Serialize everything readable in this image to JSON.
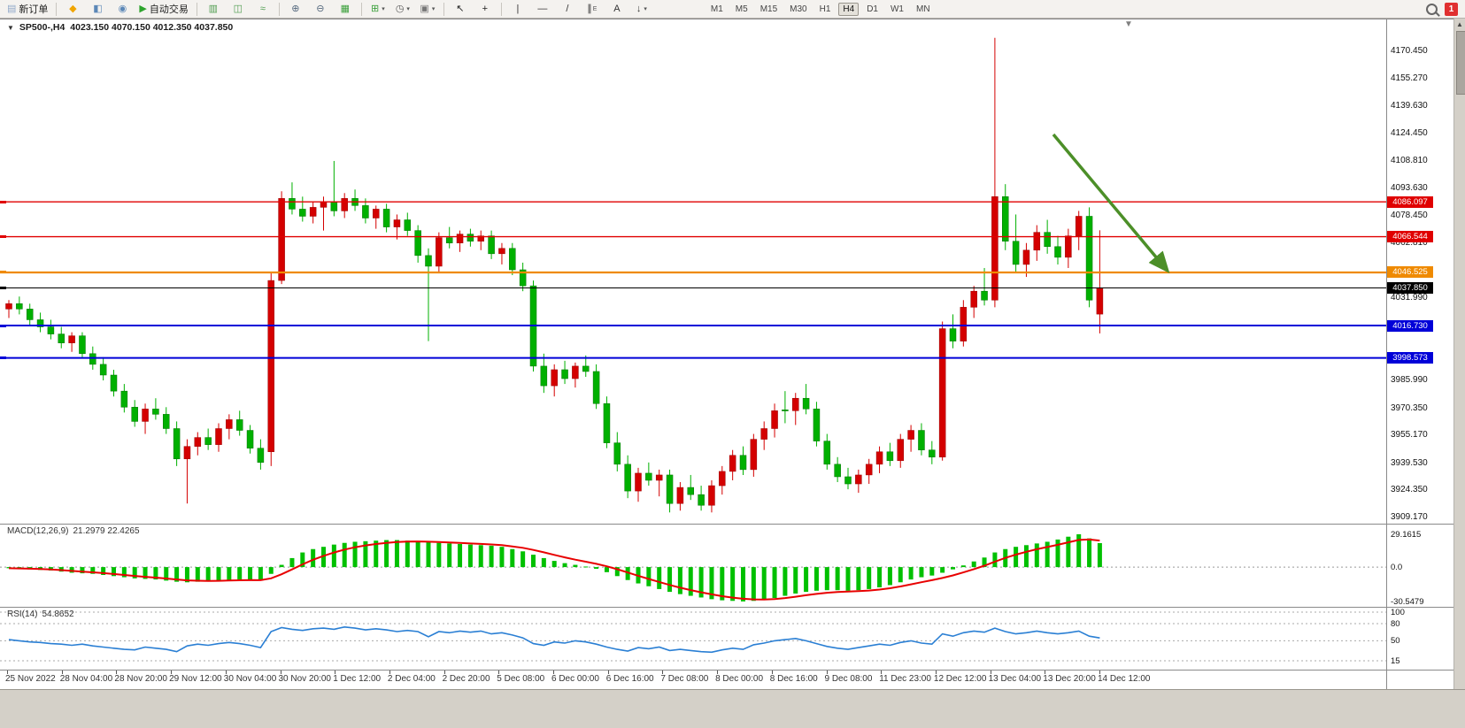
{
  "toolbar": {
    "buttons": [
      {
        "name": "new-order-button",
        "glyph": "▤",
        "color": "#8fa8c8",
        "label": "新订单"
      },
      {
        "sep": true
      },
      {
        "name": "mql5-icon",
        "glyph": "◆",
        "color": "#f0a500"
      },
      {
        "name": "profiles-icon",
        "glyph": "◧",
        "color": "#5b87b7"
      },
      {
        "name": "market-watch-icon",
        "glyph": "◉",
        "color": "#5b87b7"
      },
      {
        "name": "algo-trading-button",
        "glyph": "▶",
        "color": "#2da42d",
        "label": "自动交易"
      },
      {
        "sep": true
      },
      {
        "name": "bar-chart-type-icon",
        "glyph": "▥",
        "color": "#4f9d4f"
      },
      {
        "name": "candlestick-type-icon",
        "glyph": "◫",
        "color": "#4f9d4f"
      },
      {
        "name": "line-chart-type-icon",
        "glyph": "≈",
        "color": "#4f9d4f"
      },
      {
        "sep": true
      },
      {
        "name": "zoom-in-icon",
        "glyph": "⊕",
        "color": "#56697e"
      },
      {
        "name": "zoom-out-icon",
        "glyph": "⊖",
        "color": "#56697e"
      },
      {
        "name": "tile-windows-icon",
        "glyph": "▦",
        "color": "#3ca03c"
      },
      {
        "sep": true
      },
      {
        "name": "new-chart-icon",
        "glyph": "⊞",
        "color": "#3ca03c",
        "caret": true
      },
      {
        "name": "period-icon",
        "glyph": "◷",
        "color": "#555555",
        "caret": true
      },
      {
        "name": "snapshot-icon",
        "glyph": "▣",
        "color": "#777777",
        "caret": true
      },
      {
        "sep": true
      },
      {
        "name": "cursor-icon",
        "glyph": "↖",
        "color": "#222222"
      },
      {
        "name": "crosshair-icon",
        "glyph": "+",
        "color": "#222222"
      },
      {
        "sep": true
      },
      {
        "name": "vertical-line-icon",
        "glyph": "|",
        "color": "#333333"
      },
      {
        "name": "horizontal-line-icon",
        "glyph": "—",
        "color": "#333333"
      },
      {
        "name": "trendline-icon",
        "glyph": "/",
        "color": "#333333"
      },
      {
        "name": "equidistant-channel-icon",
        "glyph": "∥",
        "color": "#333333",
        "sub": "E"
      },
      {
        "name": "text-tool-icon",
        "glyph": "A",
        "color": "#333333"
      },
      {
        "name": "arrows-tool-icon",
        "glyph": "↓",
        "color": "#333333",
        "caret": true
      }
    ],
    "timeframes": [
      "M1",
      "M5",
      "M15",
      "M30",
      "H1",
      "H4",
      "D1",
      "W1",
      "MN"
    ],
    "active_timeframe": "H4",
    "notification_count": "1"
  },
  "chart": {
    "symbol": "SP500-,H4",
    "ohlc": "4023.150 4070.150 4012.350 4037.850",
    "shift_marker": "▼",
    "colors": {
      "up": "#d40000",
      "up_stroke": "#9a0000",
      "down": "#00b000",
      "down_stroke": "#007400",
      "arrow": "#4c8f28"
    },
    "price_axis_labels": [
      "4170.450",
      "4155.270",
      "4139.630",
      "4124.450",
      "4108.810",
      "4093.630",
      "4078.450",
      "4062.810",
      "4031.990",
      "3985.990",
      "3970.350",
      "3955.170",
      "3939.530",
      "3924.350",
      "3909.170"
    ],
    "levels": [
      {
        "value": "4086.097",
        "price": 4086.097,
        "color": "#e00000",
        "width": 1.4
      },
      {
        "value": "4066.544",
        "price": 4066.544,
        "color": "#e00000",
        "width": 1.4
      },
      {
        "value": "4046.525",
        "price": 4046.525,
        "color": "#ef8a00",
        "width": 2.2
      },
      {
        "value": "4037.850",
        "price": 4037.85,
        "color": "#000000",
        "width": 1
      },
      {
        "value": "4016.730",
        "price": 4016.73,
        "color": "#0000d8",
        "width": 2
      },
      {
        "value": "3998.573",
        "price": 3998.573,
        "color": "#0000d8",
        "width": 2
      }
    ],
    "candles": [
      [
        4026,
        4031,
        4021,
        4029
      ],
      [
        4029,
        4033,
        4023,
        4026
      ],
      [
        4026,
        4029,
        4017,
        4020
      ],
      [
        4020,
        4024,
        4013,
        4016
      ],
      [
        4016,
        4020,
        4009,
        4012
      ],
      [
        4012,
        4016,
        4004,
        4007
      ],
      [
        4007,
        4013,
        4002,
        4011
      ],
      [
        4011,
        4013,
        3999,
        4001
      ],
      [
        4001,
        4005,
        3992,
        3995
      ],
      [
        3995,
        3999,
        3986,
        3989
      ],
      [
        3989,
        3992,
        3977,
        3980
      ],
      [
        3980,
        3984,
        3968,
        3971
      ],
      [
        3971,
        3975,
        3960,
        3963
      ],
      [
        3963,
        3973,
        3956,
        3970
      ],
      [
        3970,
        3976,
        3964,
        3967
      ],
      [
        3967,
        3971,
        3956,
        3959
      ],
      [
        3959,
        3963,
        3938,
        3942
      ],
      [
        3942,
        3953,
        3917,
        3949
      ],
      [
        3949,
        3957,
        3944,
        3954
      ],
      [
        3954,
        3959,
        3947,
        3950
      ],
      [
        3950,
        3962,
        3946,
        3959
      ],
      [
        3959,
        3967,
        3953,
        3964
      ],
      [
        3964,
        3969,
        3955,
        3958
      ],
      [
        3958,
        3961,
        3945,
        3948
      ],
      [
        3948,
        3953,
        3936,
        3940
      ],
      [
        3946,
        4046,
        3938,
        4042
      ],
      [
        4042,
        4092,
        4040,
        4088
      ],
      [
        4088,
        4097,
        4079,
        4082
      ],
      [
        4082,
        4089,
        4075,
        4078
      ],
      [
        4078,
        4086,
        4074,
        4083
      ],
      [
        4083,
        4089,
        4070,
        4086
      ],
      [
        4086,
        4109,
        4078,
        4081
      ],
      [
        4081,
        4091,
        4077,
        4088
      ],
      [
        4088,
        4093,
        4081,
        4084
      ],
      [
        4084,
        4088,
        4074,
        4077
      ],
      [
        4077,
        4084,
        4071,
        4082
      ],
      [
        4082,
        4085,
        4069,
        4072
      ],
      [
        4072,
        4079,
        4065,
        4076
      ],
      [
        4076,
        4080,
        4067,
        4070
      ],
      [
        4070,
        4073,
        4052,
        4056
      ],
      [
        4056,
        4060,
        4008,
        4050
      ],
      [
        4050,
        4069,
        4046,
        4066
      ],
      [
        4066,
        4072,
        4060,
        4063
      ],
      [
        4063,
        4070,
        4058,
        4068
      ],
      [
        4068,
        4071,
        4061,
        4064
      ],
      [
        4064,
        4070,
        4059,
        4067
      ],
      [
        4067,
        4070,
        4054,
        4057
      ],
      [
        4057,
        4063,
        4051,
        4060
      ],
      [
        4060,
        4063,
        4045,
        4048
      ],
      [
        4048,
        4052,
        4036,
        4039
      ],
      [
        4039,
        4042,
        3991,
        3994
      ],
      [
        3994,
        4001,
        3979,
        3983
      ],
      [
        3983,
        3995,
        3977,
        3992
      ],
      [
        3992,
        3997,
        3984,
        3987
      ],
      [
        3987,
        3996,
        3982,
        3994
      ],
      [
        3994,
        4000,
        3988,
        3991
      ],
      [
        3991,
        3995,
        3970,
        3973
      ],
      [
        3973,
        3977,
        3948,
        3951
      ],
      [
        3951,
        3957,
        3935,
        3939
      ],
      [
        3939,
        3944,
        3920,
        3924
      ],
      [
        3924,
        3937,
        3918,
        3934
      ],
      [
        3934,
        3940,
        3927,
        3930
      ],
      [
        3930,
        3936,
        3921,
        3933
      ],
      [
        3933,
        3936,
        3912,
        3917
      ],
      [
        3917,
        3929,
        3913,
        3926
      ],
      [
        3926,
        3933,
        3919,
        3922
      ],
      [
        3922,
        3927,
        3913,
        3916
      ],
      [
        3916,
        3930,
        3912,
        3927
      ],
      [
        3927,
        3938,
        3922,
        3935
      ],
      [
        3935,
        3947,
        3930,
        3944
      ],
      [
        3944,
        3949,
        3933,
        3936
      ],
      [
        3936,
        3956,
        3932,
        3953
      ],
      [
        3953,
        3963,
        3947,
        3959
      ],
      [
        3959,
        3973,
        3954,
        3969
      ],
      [
        3969.5,
        3980,
        3962,
        3969
      ],
      [
        3969,
        3979,
        3961,
        3976
      ],
      [
        3976,
        3984,
        3967,
        3970
      ],
      [
        3970,
        3974,
        3949,
        3952
      ],
      [
        3952,
        3956,
        3936,
        3939
      ],
      [
        3939,
        3943,
        3929,
        3932
      ],
      [
        3932,
        3937,
        3925,
        3928
      ],
      [
        3928,
        3936,
        3923,
        3933
      ],
      [
        3933,
        3942,
        3928,
        3939
      ],
      [
        3939,
        3949,
        3934,
        3946
      ],
      [
        3946,
        3951,
        3938,
        3941
      ],
      [
        3941,
        3956,
        3937,
        3953
      ],
      [
        3953,
        3961,
        3946,
        3958
      ],
      [
        3958,
        3962,
        3944,
        3947
      ],
      [
        3947,
        3952,
        3939,
        3943
      ],
      [
        3943,
        4019,
        3941,
        4015
      ],
      [
        4015,
        4023,
        4004,
        4008
      ],
      [
        4008,
        4031,
        4005,
        4027
      ],
      [
        4027,
        4039,
        4021,
        4036
      ],
      [
        4036,
        4049,
        4028,
        4031
      ],
      [
        4031,
        4178,
        4027,
        4089
      ],
      [
        4089,
        4096,
        4059,
        4064
      ],
      [
        4064,
        4079,
        4047,
        4051
      ],
      [
        4051,
        4063,
        4044,
        4059
      ],
      [
        4059,
        4073,
        4053,
        4069
      ],
      [
        4069,
        4076,
        4057,
        4061
      ],
      [
        4061,
        4067,
        4051,
        4055
      ],
      [
        4055,
        4071,
        4049,
        4067
      ],
      [
        4067,
        4081,
        4059,
        4078
      ],
      [
        4078,
        4083,
        4027,
        4031
      ],
      [
        4023.15,
        4070.15,
        4012.35,
        4037.85
      ]
    ]
  },
  "macd": {
    "label": "MACD(12,26,9)",
    "values": "21.2979 22.4265",
    "axis": [
      "29.1615",
      "0.0",
      "-30.5479"
    ],
    "hist_color": "#00c000",
    "signal_color": "#e80000",
    "histogram": [
      -1,
      -1.5,
      -2,
      -2.5,
      -3,
      -4,
      -5,
      -5.5,
      -6,
      -7,
      -8,
      -9,
      -10,
      -10.5,
      -11,
      -12,
      -13,
      -13.5,
      -13,
      -12.5,
      -12,
      -11.5,
      -11,
      -11,
      -12,
      -6,
      2,
      8,
      13,
      16,
      18,
      20,
      21.5,
      22.5,
      23,
      23.5,
      24,
      24,
      23.5,
      23,
      22,
      21.5,
      21,
      20.5,
      20,
      19.5,
      19,
      18,
      16,
      14,
      11,
      8,
      5.5,
      3.5,
      2,
      0.5,
      -1.5,
      -4.5,
      -8,
      -11.5,
      -14.5,
      -17,
      -19.5,
      -22,
      -24,
      -25.5,
      -27,
      -28.5,
      -29.5,
      -30,
      -30.5,
      -30,
      -29,
      -27.5,
      -25.5,
      -23.5,
      -22,
      -21,
      -20.5,
      -20.5,
      -21,
      -20.5,
      -19.5,
      -18,
      -16,
      -13.5,
      -11,
      -9,
      -7.5,
      -5,
      -2,
      1.5,
      5,
      8.5,
      13,
      16,
      18,
      19.5,
      21,
      22.5,
      24.5,
      27,
      29.16,
      25.5,
      21.3
    ]
  },
  "rsi": {
    "label": "RSI(14)",
    "value": "54.8652",
    "axis": [
      "100",
      "80",
      "50",
      "15"
    ],
    "line_color": "#2a7fd4",
    "level_lines": [
      100,
      80,
      50,
      15
    ],
    "values": [
      52,
      50,
      48,
      47,
      45,
      44,
      42,
      44,
      41,
      39,
      37,
      35,
      34,
      39,
      37,
      35,
      31,
      41,
      44,
      42,
      45,
      47,
      45,
      42,
      38,
      66,
      73,
      70,
      68,
      71,
      72,
      70,
      74,
      72,
      69,
      71,
      69,
      66,
      68,
      66,
      57,
      66,
      64,
      67,
      65,
      67,
      62,
      64,
      60,
      55,
      45,
      42,
      48,
      46,
      50,
      48,
      44,
      39,
      35,
      32,
      38,
      36,
      39,
      33,
      35,
      33,
      31,
      30,
      34,
      37,
      35,
      43,
      46,
      50,
      52,
      54,
      50,
      45,
      40,
      37,
      35,
      38,
      41,
      44,
      42,
      47,
      50,
      46,
      44,
      62,
      58,
      64,
      67,
      65,
      72,
      66,
      62,
      64,
      67,
      64,
      62,
      64,
      67,
      58,
      54.87
    ]
  },
  "time_axis": {
    "labels": [
      "25 Nov 2022",
      "28 Nov 04:00",
      "28 Nov 20:00",
      "29 Nov 12:00",
      "30 Nov 04:00",
      "30 Nov 20:00",
      "1 Dec 12:00",
      "2 Dec 04:00",
      "2 Dec 20:00",
      "5 Dec 08:00",
      "6 Dec 00:00",
      "6 Dec 16:00",
      "7 Dec 08:00",
      "8 Dec 00:00",
      "8 Dec 16:00",
      "9 Dec 08:00",
      "11 Dec 23:00",
      "12 Dec 12:00",
      "13 Dec 04:00",
      "13 Dec 20:00",
      "14 Dec 12:00"
    ]
  }
}
